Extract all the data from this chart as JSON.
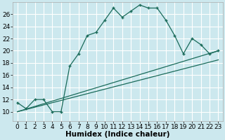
{
  "title": "",
  "xlabel": "Humidex (Indice chaleur)",
  "bg_color": "#cce8ee",
  "grid_color": "#ffffff",
  "line_color": "#1a6b5a",
  "xlim": [
    -0.5,
    23.5
  ],
  "ylim": [
    8.5,
    28
  ],
  "yticks": [
    10,
    12,
    14,
    16,
    18,
    20,
    22,
    24,
    26
  ],
  "xticks": [
    0,
    1,
    2,
    3,
    4,
    5,
    6,
    7,
    8,
    9,
    10,
    11,
    12,
    13,
    14,
    15,
    16,
    17,
    18,
    19,
    20,
    21,
    22,
    23
  ],
  "curve1_x": [
    0,
    1,
    2,
    3,
    4,
    5,
    6,
    7,
    8,
    9,
    10,
    11,
    12,
    13,
    14,
    15,
    16,
    17,
    18,
    19,
    20,
    21,
    22,
    23
  ],
  "curve1_y": [
    11.5,
    10.5,
    12,
    12,
    10,
    10,
    17.5,
    19.5,
    22.5,
    23,
    25,
    27,
    25.5,
    26.5,
    27.5,
    27,
    27,
    25,
    22.5,
    19.5,
    22,
    21,
    19.5,
    20
  ],
  "curve2_x": [
    0,
    23
  ],
  "curve2_y": [
    10,
    20
  ],
  "curve3_x": [
    0,
    23
  ],
  "curve3_y": [
    10,
    18.5
  ],
  "tick_fontsize": 6.5,
  "xlabel_fontsize": 7.5
}
